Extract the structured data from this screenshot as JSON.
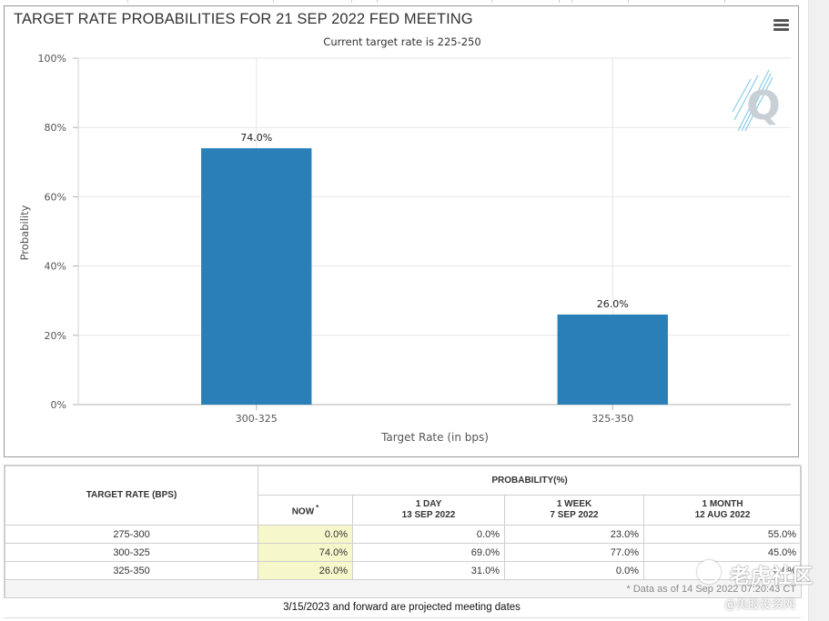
{
  "chart": {
    "title": "TARGET RATE PROBABILITIES FOR 21 SEP 2022 FED MEETING",
    "subtitle": "Current target rate is 225-250",
    "logo_letter": "Q"
  },
  "chart_data": {
    "type": "bar",
    "title": "TARGET RATE PROBABILITIES FOR 21 SEP 2022 FED MEETING",
    "subtitle": "Current target rate is 225-250",
    "categories": [
      "300-325",
      "325-350"
    ],
    "values": [
      74.0,
      26.0
    ],
    "data_labels": [
      "74.0%",
      "26.0%"
    ],
    "xlabel": "Target Rate (in bps)",
    "ylabel": "Probability",
    "ylim": [
      0,
      100
    ],
    "yticks": [
      "0%",
      "20%",
      "40%",
      "60%",
      "80%",
      "100%"
    ],
    "bar_color": "#2b7fb8",
    "grid": true
  },
  "table": {
    "target_rate_header": "TARGET RATE (BPS)",
    "probability_header": "PROBABILITY(%)",
    "columns": [
      {
        "line1": "NOW",
        "line2": "",
        "marker": "*"
      },
      {
        "line1": "1 DAY",
        "line2": "13 SEP 2022"
      },
      {
        "line1": "1 WEEK",
        "line2": "7 SEP 2022"
      },
      {
        "line1": "1 MONTH",
        "line2": "12 AUG 2022"
      }
    ],
    "rows": [
      {
        "rate": "275-300",
        "now": "0.0%",
        "day": "0.0%",
        "week": "23.0%",
        "month": "55.0%"
      },
      {
        "rate": "300-325",
        "now": "74.0%",
        "day": "69.0%",
        "week": "77.0%",
        "month": "45.0%"
      },
      {
        "rate": "325-350",
        "now": "26.0%",
        "day": "31.0%",
        "week": "0.0%",
        "month": "0.0%"
      }
    ],
    "footnote": "* Data as of 14 Sep 2022 07:20:43 CT",
    "projected_note": "3/15/2023 and forward are projected meeting dates"
  },
  "watermark": {
    "main": "老虎社区",
    "sub": "@美股投资网"
  },
  "colors": {
    "bar": "#2b7fb8",
    "now_column": "#f7f7cc",
    "logo": "#2aa6d6"
  }
}
